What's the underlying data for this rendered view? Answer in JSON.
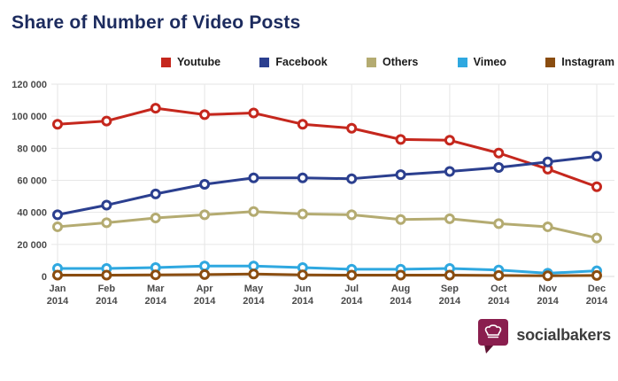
{
  "title": "Share of Number of Video Posts",
  "title_color": "#1c2b5e",
  "chart_data": {
    "type": "line",
    "categories": [
      "Jan",
      "Feb",
      "Mar",
      "Apr",
      "May",
      "Jun",
      "Jul",
      "Aug",
      "Sep",
      "Oct",
      "Nov",
      "Dec"
    ],
    "category_year": "2014",
    "series": [
      {
        "name": "Youtube",
        "color": "#c5271d",
        "values": [
          95000,
          97000,
          105000,
          101000,
          102000,
          95000,
          92500,
          85500,
          85000,
          77000,
          67000,
          56000
        ]
      },
      {
        "name": "Facebook",
        "color": "#2b3f8f",
        "values": [
          38500,
          44500,
          51500,
          57500,
          61500,
          61500,
          61000,
          63500,
          65500,
          68000,
          71500,
          75000
        ]
      },
      {
        "name": "Others",
        "color": "#b4ab71",
        "values": [
          31000,
          33500,
          36500,
          38500,
          40500,
          39000,
          38500,
          35500,
          36000,
          33000,
          31000,
          24000
        ]
      },
      {
        "name": "Vimeo",
        "color": "#2fa8e0",
        "values": [
          5000,
          5000,
          5500,
          6500,
          6500,
          5500,
          4500,
          4500,
          5000,
          4000,
          2000,
          3500
        ]
      },
      {
        "name": "Instagram",
        "color": "#8a4d10",
        "values": [
          800,
          800,
          1000,
          1200,
          1500,
          1000,
          800,
          800,
          800,
          600,
          400,
          600
        ]
      }
    ],
    "title": "Share of Number of Video Posts",
    "xlabel": "",
    "ylabel": "",
    "ylim": [
      0,
      120000
    ],
    "ytick_step": 20000,
    "ytick_labels": [
      "0",
      "20 000",
      "40 000",
      "60 000",
      "80 000",
      "100 000",
      "120 000"
    ],
    "grid": true,
    "legend_position": "top",
    "marker": "open-circle"
  },
  "footer": {
    "brand": "socialbakers",
    "badge_color": "#8a1e4e"
  }
}
